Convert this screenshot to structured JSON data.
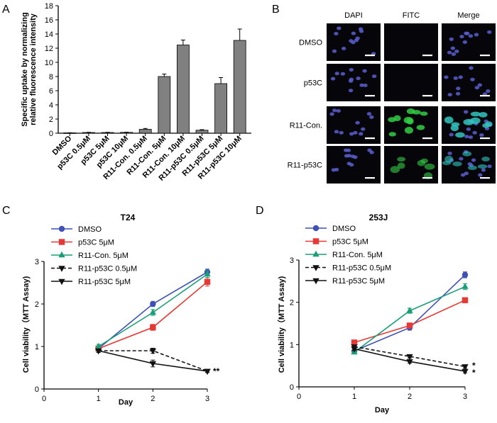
{
  "panels": {
    "A": "A",
    "B": "B",
    "C": "C",
    "D": "D"
  },
  "colors": {
    "bar": "#808080",
    "dmso": "#3f51b5",
    "p53c": "#e53935",
    "r11con": "#1a9e77",
    "black": "#111111",
    "dapi": "#5a5fd0",
    "fitc": "#33cc44",
    "merge": "#33c4c0"
  },
  "chart_data": [
    {
      "type": "bar",
      "ylabel_line1": "Specific uptake by normalizing",
      "ylabel_line2": "relative fluorescence intensity",
      "ylim": [
        0,
        18
      ],
      "yticks": [
        0,
        2,
        4,
        6,
        8,
        10,
        12,
        14,
        16,
        18
      ],
      "categories": [
        "DMSO",
        "p53C 0.5μM",
        "p53C 5μM",
        "p53C 10μM",
        "R11-Con. 0.5μM",
        "R11-Con. 5μM",
        "R11-Con. 10μM",
        "R11-p53C 0.5μM",
        "R11-p53C 5μM",
        "R11-p53C 10μM"
      ],
      "values": [
        0.05,
        0.1,
        0.1,
        0.12,
        0.55,
        8.0,
        12.45,
        0.42,
        7.0,
        13.1
      ],
      "errors": [
        0.02,
        0.03,
        0.03,
        0.03,
        0.12,
        0.35,
        0.7,
        0.08,
        0.85,
        1.6
      ]
    },
    {
      "type": "line",
      "title": "T24",
      "xlabel": "Day",
      "ylabel": "Cell viability（MTT Assay)",
      "xlim": [
        0,
        3
      ],
      "ylim": [
        0,
        3
      ],
      "xticks": [
        0,
        1,
        2,
        3
      ],
      "yticks": [
        0,
        1,
        2,
        3
      ],
      "x": [
        1,
        2,
        3
      ],
      "series": [
        {
          "name": "DMSO",
          "values": [
            0.95,
            2.0,
            2.75
          ],
          "errors": [
            0.04,
            0.06,
            0.07
          ],
          "marker": "circle",
          "color": "#3f51b5",
          "dash": false
        },
        {
          "name": "p53C 5μM",
          "values": [
            0.95,
            1.45,
            2.52
          ],
          "errors": [
            0.05,
            0.07,
            0.1
          ],
          "marker": "square",
          "color": "#e53935",
          "dash": false
        },
        {
          "name": "R11-Con. 5μM",
          "values": [
            1.0,
            1.8,
            2.7
          ],
          "errors": [
            0.05,
            0.07,
            0.08
          ],
          "marker": "triangle-up",
          "color": "#1a9e77",
          "dash": false
        },
        {
          "name": "R11-p53C 0.5μM",
          "values": [
            0.9,
            0.9,
            0.42
          ],
          "errors": [
            0.04,
            0.06,
            0.03
          ],
          "marker": "triangle-down",
          "color": "#111111",
          "dash": true
        },
        {
          "name": "R11-p53C 5μM",
          "values": [
            0.9,
            0.6,
            0.42
          ],
          "errors": [
            0.04,
            0.08,
            0.03
          ],
          "marker": "triangle-down",
          "color": "#111111",
          "dash": false
        }
      ],
      "annotations": [
        "**"
      ]
    },
    {
      "type": "line",
      "title": "253J",
      "xlabel": "Day",
      "ylabel": "Cell viability（MTT Assay)",
      "xlim": [
        0,
        3
      ],
      "ylim": [
        0,
        3
      ],
      "xticks": [
        0,
        1,
        2,
        3
      ],
      "yticks": [
        0,
        1,
        2,
        3
      ],
      "x": [
        1,
        2,
        3
      ],
      "series": [
        {
          "name": "DMSO",
          "values": [
            0.85,
            1.4,
            2.65
          ],
          "errors": [
            0.04,
            0.06,
            0.07
          ],
          "marker": "circle",
          "color": "#3f51b5",
          "dash": false
        },
        {
          "name": "p53C 5μM",
          "values": [
            1.05,
            1.45,
            2.05
          ],
          "errors": [
            0.04,
            0.06,
            0.06
          ],
          "marker": "square",
          "color": "#e53935",
          "dash": false
        },
        {
          "name": "R11-Con. 5μM",
          "values": [
            0.82,
            1.8,
            2.37
          ],
          "errors": [
            0.04,
            0.06,
            0.07
          ],
          "marker": "triangle-up",
          "color": "#1a9e77",
          "dash": false
        },
        {
          "name": "R11-p53C 0.5μM",
          "values": [
            0.95,
            0.72,
            0.48
          ],
          "errors": [
            0.04,
            0.04,
            0.04
          ],
          "marker": "triangle-down",
          "color": "#111111",
          "dash": true
        },
        {
          "name": "R11-p53C 5μM",
          "values": [
            0.9,
            0.6,
            0.37
          ],
          "errors": [
            0.04,
            0.04,
            0.04
          ],
          "marker": "triangle-down",
          "color": "#111111",
          "dash": false
        }
      ],
      "annotations": [
        "*",
        "*"
      ]
    }
  ],
  "micrograph": {
    "columns": [
      "DAPI",
      "FITC",
      "Merge"
    ],
    "rows": [
      "DMSO",
      "p53C",
      "R11-Con.",
      "R11-p53C"
    ]
  }
}
